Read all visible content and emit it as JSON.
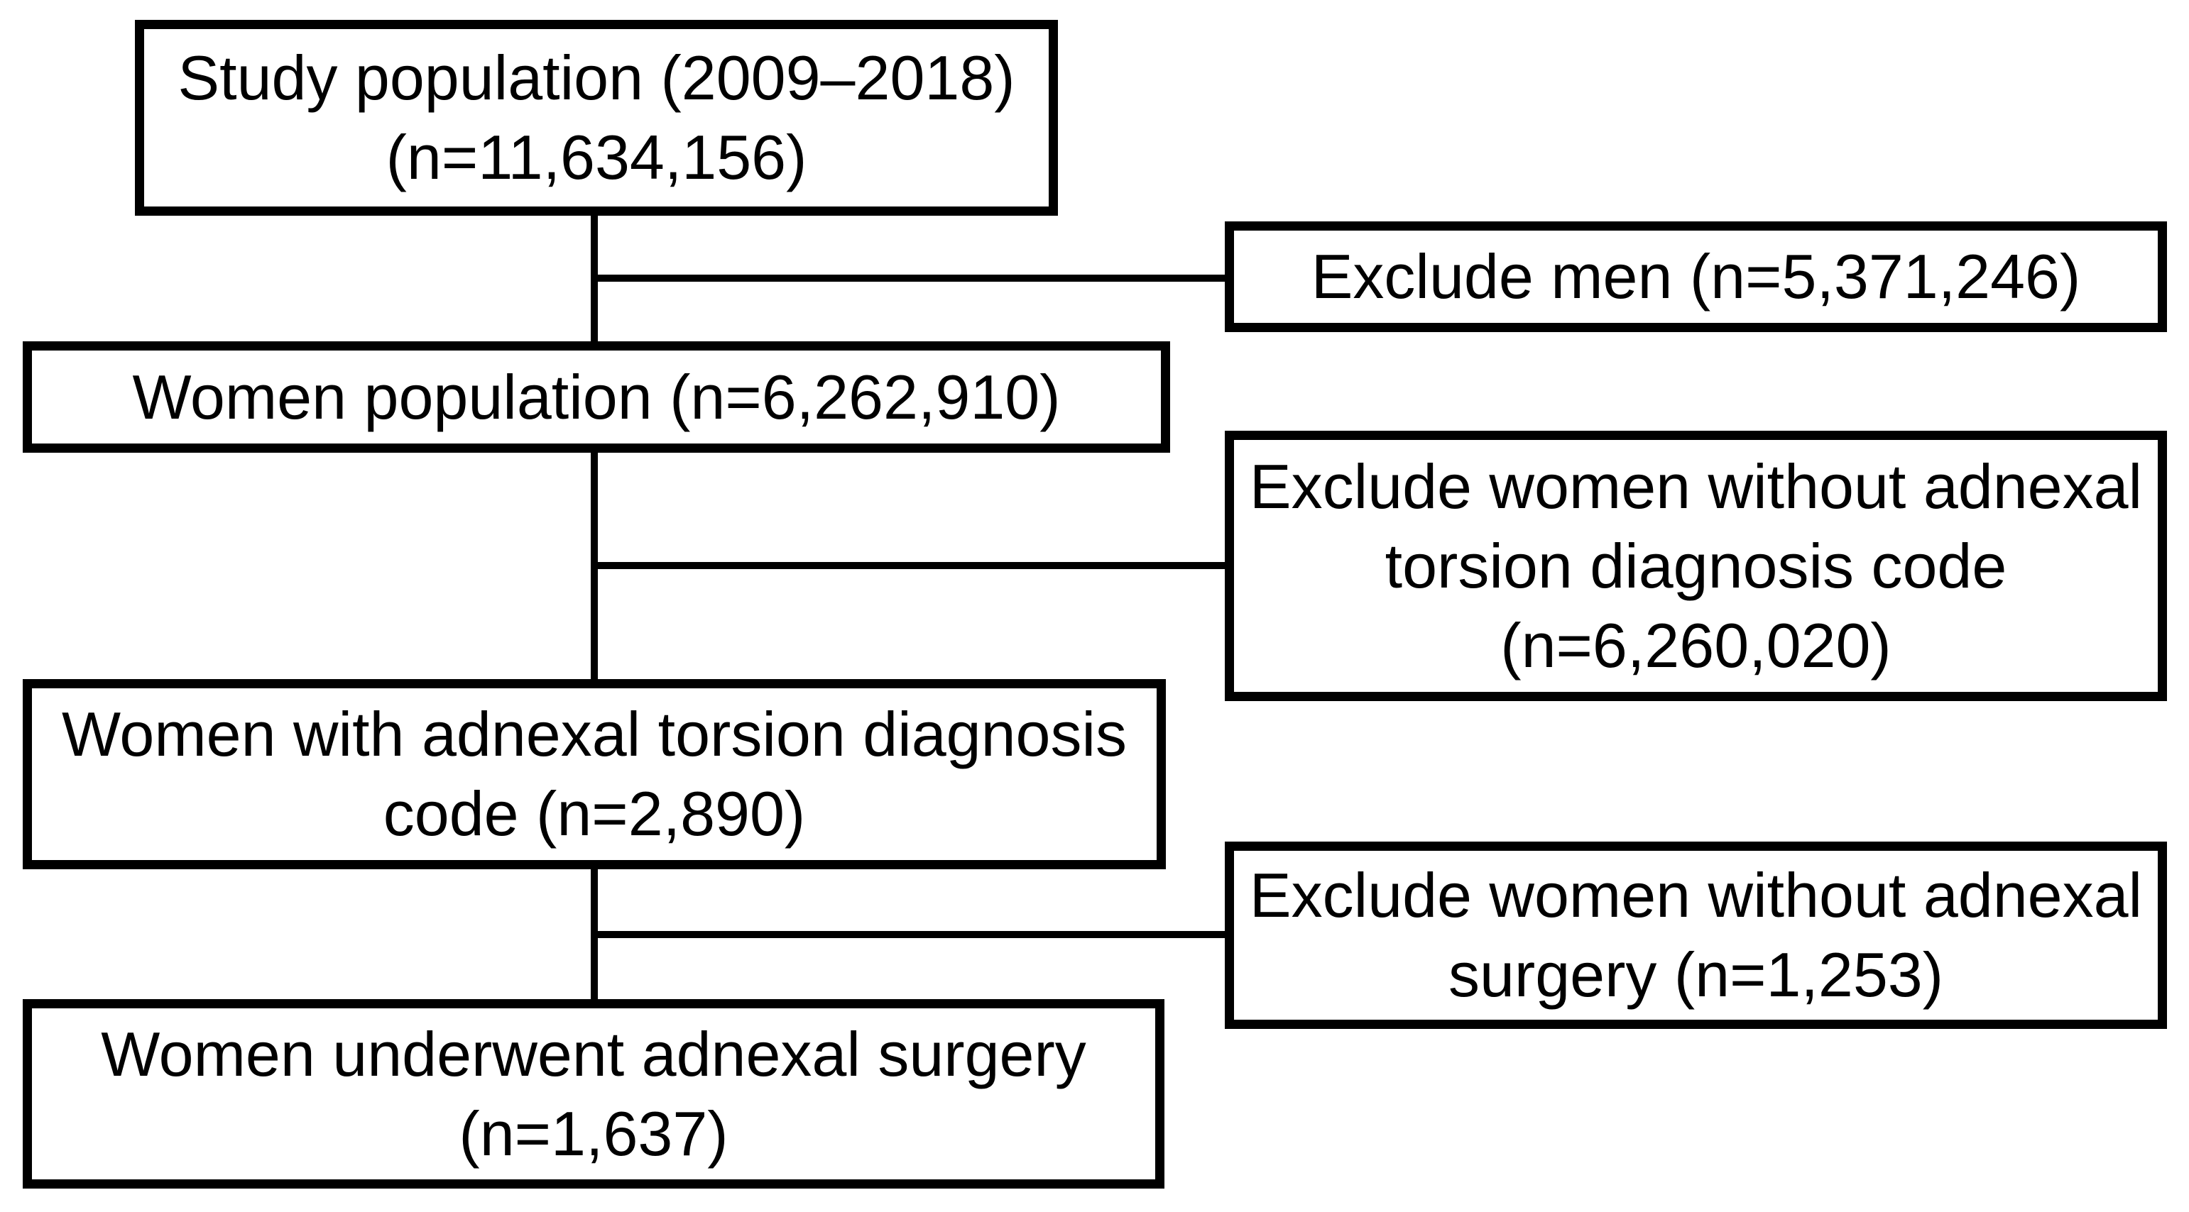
{
  "diagram": {
    "type": "flowchart",
    "colors": {
      "background": "#ffffff",
      "box_border": "#000000",
      "text": "#000000",
      "connector": "#000000"
    },
    "nodes": [
      {
        "id": "study-population",
        "role": "cohort",
        "n": "11,634,156",
        "lines": [
          "Study population (2009–2018)",
          "(n=11,634,156)"
        ]
      },
      {
        "id": "exclude-men",
        "role": "exclusion",
        "n": "5,371,246",
        "lines": [
          "Exclude men (n=5,371,246)"
        ]
      },
      {
        "id": "women-population",
        "role": "cohort",
        "n": "6,262,910",
        "lines": [
          "Women population (n=6,262,910)"
        ]
      },
      {
        "id": "exclude-without-torsion-code",
        "role": "exclusion",
        "n": "6,260,020",
        "lines": [
          "Exclude women without adnexal",
          "torsion diagnosis code",
          "(n=6,260,020)"
        ]
      },
      {
        "id": "women-with-torsion-code",
        "role": "cohort",
        "n": "2,890",
        "lines": [
          "Women with adnexal torsion diagnosis",
          "code (n=2,890)"
        ]
      },
      {
        "id": "exclude-without-surgery",
        "role": "exclusion",
        "n": "1,253",
        "lines": [
          "Exclude women without adnexal",
          "surgery (n=1,253)"
        ]
      },
      {
        "id": "women-underwent-surgery",
        "role": "cohort",
        "n": "1,637",
        "lines": [
          "Women underwent adnexal surgery",
          "(n=1,637)"
        ]
      }
    ],
    "edges": [
      {
        "from": "study-population",
        "to": "women-population"
      },
      {
        "from": "study-population",
        "to": "exclude-men"
      },
      {
        "from": "women-population",
        "to": "women-with-torsion-code"
      },
      {
        "from": "women-population",
        "to": "exclude-without-torsion-code"
      },
      {
        "from": "women-with-torsion-code",
        "to": "women-underwent-surgery"
      },
      {
        "from": "women-with-torsion-code",
        "to": "exclude-without-surgery"
      }
    ]
  }
}
